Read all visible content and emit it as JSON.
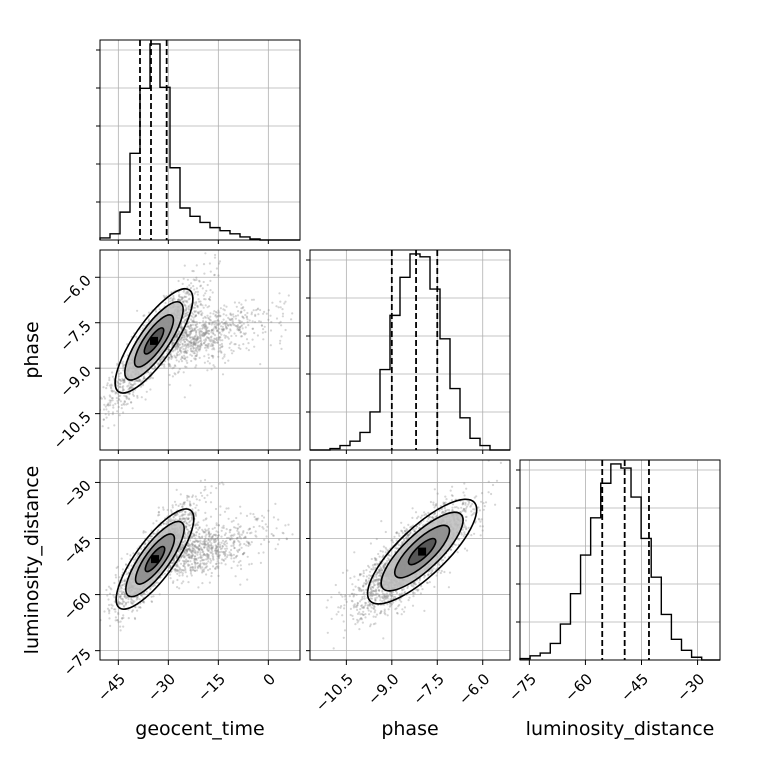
{
  "chart_data": {
    "type": "corner",
    "parameters": [
      "geocent_time",
      "phase",
      "luminosity_distance"
    ],
    "grid": true,
    "axes": {
      "geocent_time": {
        "label": "geocent_time",
        "range": [
          -50.5,
          9.5
        ],
        "ticks": [
          -45,
          -30,
          -15,
          0
        ],
        "tick_labels": [
          "−45",
          "−30",
          "−15",
          "0"
        ]
      },
      "phase": {
        "label": "phase",
        "range": [
          -11.7,
          -5.1
        ],
        "ticks": [
          -10.5,
          -9.0,
          -7.5,
          -6.0
        ],
        "tick_labels": [
          "−10.5",
          "−9.0",
          "−7.5",
          "−6.0"
        ]
      },
      "luminosity_distance": {
        "label": "luminosity_distance",
        "range": [
          -77.5,
          -24.0
        ],
        "ticks": [
          -75,
          -60,
          -45,
          -30
        ],
        "tick_labels": [
          "−75",
          "−60",
          "−45",
          "−30"
        ]
      }
    },
    "histograms": {
      "geocent_time": {
        "edges": [
          -50.5,
          -47.5,
          -44.5,
          -41.5,
          -38.5,
          -35.5,
          -32.5,
          -29.5,
          -26.5,
          -23.5,
          -20.5,
          -17.5,
          -14.5,
          -11.5,
          -8.5,
          -5.5,
          -2.5,
          0.5,
          3.5,
          6.5,
          9.5
        ],
        "counts": [
          2,
          6,
          27,
          84,
          147,
          190,
          148,
          70,
          31,
          23,
          17,
          12,
          9,
          6,
          3,
          1,
          0,
          0,
          0,
          0
        ],
        "quantiles": [
          -38.5,
          -35.2,
          -30.5
        ]
      },
      "phase": {
        "edges": [
          -11.7,
          -11.37,
          -11.04,
          -10.71,
          -10.38,
          -10.05,
          -9.72,
          -9.39,
          -9.06,
          -8.73,
          -8.4,
          -8.07,
          -7.74,
          -7.41,
          -7.08,
          -6.75,
          -6.42,
          -6.09,
          -5.76,
          -5.43,
          -5.1
        ],
        "counts": [
          0,
          0,
          1,
          3,
          6,
          12,
          26,
          55,
          92,
          118,
          134,
          132,
          110,
          76,
          42,
          22,
          8,
          3,
          0,
          0
        ],
        "quantiles": [
          -9.0,
          -8.2,
          -7.5
        ]
      },
      "luminosity_distance": {
        "edges": [
          -77.5,
          -74.8,
          -72.1,
          -69.4,
          -66.7,
          -64.0,
          -61.3,
          -58.6,
          -55.9,
          -53.2,
          -50.5,
          -47.8,
          -45.1,
          -42.4,
          -39.7,
          -37.0,
          -34.3,
          -31.6,
          -28.9,
          -26.2,
          -24.0
        ],
        "counts": [
          1,
          3,
          5,
          12,
          26,
          48,
          76,
          103,
          128,
          142,
          139,
          118,
          88,
          60,
          33,
          15,
          7,
          2,
          0,
          0
        ],
        "quantiles": [
          -55.5,
          -49.5,
          -43.0
        ]
      }
    },
    "scatter_panels": [
      {
        "x": "geocent_time",
        "y": "phase",
        "mean": [
          -34,
          -8.2
        ],
        "std": [
          6,
          0.9
        ],
        "correlation": 0.85,
        "peak": [
          -34.3,
          -8.1
        ]
      },
      {
        "x": "geocent_time",
        "y": "luminosity_distance",
        "mean": [
          -34,
          -50
        ],
        "std": [
          6,
          7
        ],
        "correlation": 0.85,
        "peak": [
          -34.0,
          -50.5
        ]
      },
      {
        "x": "phase",
        "y": "luminosity_distance",
        "mean": [
          -8.3,
          -50
        ],
        "std": [
          0.9,
          7
        ],
        "correlation": 0.8,
        "peak": [
          -8.0,
          -48.5
        ]
      }
    ],
    "contour_levels_sigma": [
      0.5,
      1.0,
      1.5,
      2.0
    ]
  }
}
